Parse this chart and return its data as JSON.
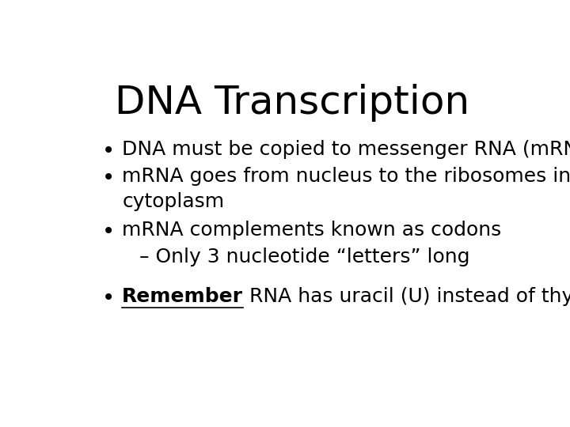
{
  "title": "DNA Transcription",
  "title_fontsize": 36,
  "title_font": "DejaVu Sans",
  "background_color": "#ffffff",
  "text_color": "#000000",
  "bullet_lines": [
    {
      "indent": 0,
      "bullet": true,
      "text": "DNA must be copied to messenger RNA (mRNA)"
    },
    {
      "indent": 0,
      "bullet": true,
      "text": "mRNA goes from nucleus to the ribosomes in\ncytoplasm"
    },
    {
      "indent": 0,
      "bullet": true,
      "text": "mRNA complements known as codons"
    },
    {
      "indent": 1,
      "bullet": false,
      "text": "– Only 3 nucleotide “letters” long"
    }
  ],
  "remember_line": "RNA has uracil (U) instead of thymine (T)!",
  "remember_word": "Remember",
  "body_fontsize": 18,
  "sub_fontsize": 18
}
